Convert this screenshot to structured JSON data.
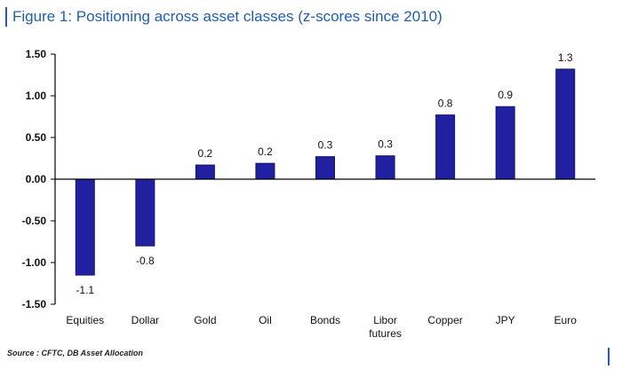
{
  "title": "Figure 1: Positioning across asset classes (z-scores since 2010)",
  "source": "Source : CFTC, DB Asset Allocation",
  "colors": {
    "bar": "#2020a0",
    "bar_edge": "#14146e",
    "axis": "#000000",
    "title": "#1f5fb0"
  },
  "chart_data": {
    "type": "bar",
    "categories": [
      "Equities",
      "Dollar",
      "Gold",
      "Oil",
      "Bonds",
      "Libor futures",
      "Copper",
      "JPY",
      "Euro"
    ],
    "category_lines": [
      [
        "Equities"
      ],
      [
        "Dollar"
      ],
      [
        "Gold"
      ],
      [
        "Oil"
      ],
      [
        "Bonds"
      ],
      [
        "Libor",
        "futures"
      ],
      [
        "Copper"
      ],
      [
        "JPY"
      ],
      [
        "Euro"
      ]
    ],
    "values": [
      -1.15,
      -0.8,
      0.17,
      0.19,
      0.27,
      0.28,
      0.77,
      0.87,
      1.32
    ],
    "data_labels": [
      "-1.1",
      "-0.8",
      "0.2",
      "0.2",
      "0.3",
      "0.3",
      "0.8",
      "0.9",
      "1.3"
    ],
    "ylim": [
      -1.5,
      1.5
    ],
    "yticks": [
      1.5,
      1.0,
      0.5,
      0.0,
      -0.5,
      -1.0,
      -1.5
    ],
    "ytick_labels": [
      "1.50",
      "1.00",
      "0.50",
      "0.00",
      "-0.50",
      "-1.00",
      "-1.50"
    ],
    "grid": false,
    "legend": "none"
  }
}
